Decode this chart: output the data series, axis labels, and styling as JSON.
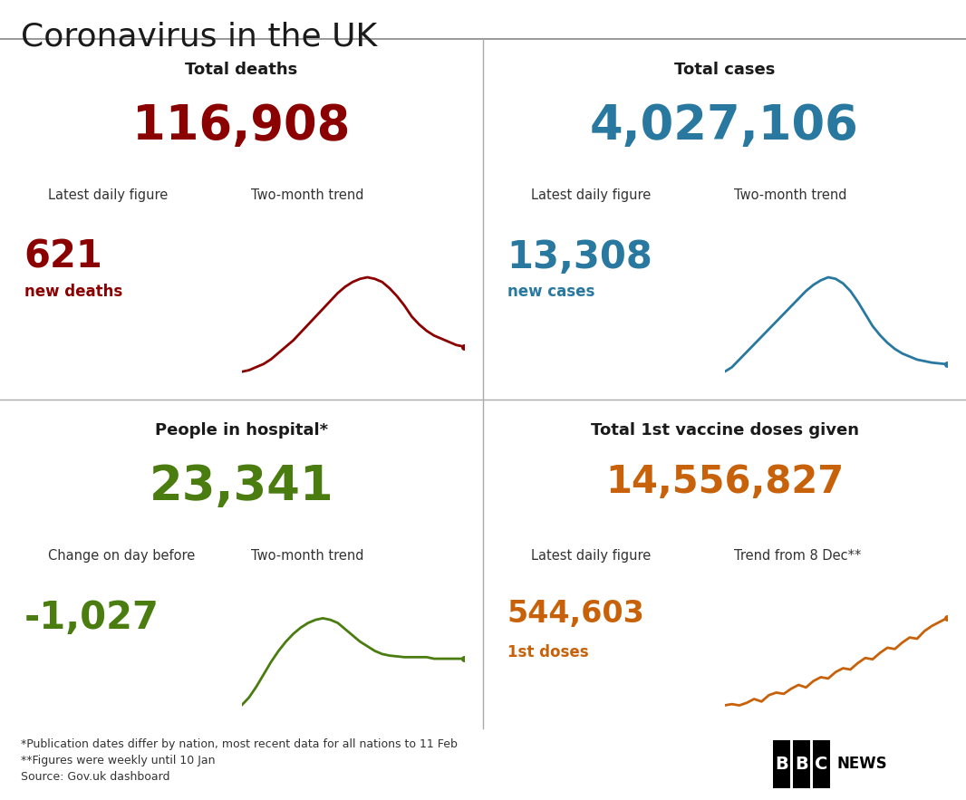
{
  "title": "Coronavirus in the UK",
  "title_color": "#1a1a1a",
  "background_color": "#ffffff",
  "panels": [
    {
      "label": "Total deaths",
      "total": "116,908",
      "total_color": "#8b0000",
      "sub_label1": "Latest daily figure",
      "sub_label2": "Two-month trend",
      "daily": "621",
      "daily_unit": "new deaths",
      "daily_color": "#8b0000",
      "trend_color": "#8b0000",
      "trend_x": [
        0,
        1,
        2,
        3,
        4,
        5,
        6,
        7,
        8,
        9,
        10,
        11,
        12,
        13,
        14,
        15,
        16,
        17,
        18,
        19,
        20,
        21,
        22,
        23,
        24,
        25,
        26,
        27,
        28,
        29,
        30
      ],
      "trend_y": [
        2.0,
        2.1,
        2.3,
        2.5,
        2.8,
        3.2,
        3.6,
        4.0,
        4.5,
        5.0,
        5.5,
        6.0,
        6.5,
        7.0,
        7.4,
        7.7,
        7.9,
        8.0,
        7.9,
        7.7,
        7.3,
        6.8,
        6.2,
        5.5,
        5.0,
        4.6,
        4.3,
        4.1,
        3.9,
        3.7,
        3.6
      ]
    },
    {
      "label": "Total cases",
      "total": "4,027,106",
      "total_color": "#2878a0",
      "sub_label1": "Latest daily figure",
      "sub_label2": "Two-month trend",
      "daily": "13,308",
      "daily_unit": "new cases",
      "daily_color": "#2878a0",
      "trend_color": "#2878a0",
      "trend_x": [
        0,
        1,
        2,
        3,
        4,
        5,
        6,
        7,
        8,
        9,
        10,
        11,
        12,
        13,
        14,
        15,
        16,
        17,
        18,
        19,
        20,
        21,
        22,
        23,
        24,
        25,
        26,
        27,
        28,
        29,
        30
      ],
      "trend_y": [
        2.0,
        2.3,
        2.8,
        3.3,
        3.8,
        4.3,
        4.8,
        5.3,
        5.8,
        6.3,
        6.8,
        7.3,
        7.7,
        8.0,
        8.2,
        8.1,
        7.8,
        7.3,
        6.6,
        5.8,
        5.0,
        4.4,
        3.9,
        3.5,
        3.2,
        3.0,
        2.8,
        2.7,
        2.6,
        2.55,
        2.5
      ]
    },
    {
      "label": "People in hospital*",
      "total": "23,341",
      "total_color": "#4a7c10",
      "sub_label1": "Change on day before",
      "sub_label2": "Two-month trend",
      "daily": "-1,027",
      "daily_unit": "",
      "daily_color": "#4a7c10",
      "trend_color": "#4a7c10",
      "trend_x": [
        0,
        1,
        2,
        3,
        4,
        5,
        6,
        7,
        8,
        9,
        10,
        11,
        12,
        13,
        14,
        15,
        16,
        17,
        18,
        19,
        20,
        21,
        22,
        23,
        24,
        25,
        26,
        27,
        28,
        29,
        30
      ],
      "trend_y": [
        2.0,
        2.5,
        3.2,
        4.0,
        4.8,
        5.5,
        6.1,
        6.6,
        7.0,
        7.3,
        7.5,
        7.6,
        7.5,
        7.3,
        6.9,
        6.5,
        6.1,
        5.8,
        5.5,
        5.3,
        5.2,
        5.15,
        5.1,
        5.1,
        5.1,
        5.1,
        5.0,
        5.0,
        5.0,
        5.0,
        5.0
      ]
    },
    {
      "label": "Total 1st vaccine doses given",
      "total": "14,556,827",
      "total_color": "#c8620a",
      "sub_label1": "Latest daily figure",
      "sub_label2": "Trend from 8 Dec**",
      "daily": "544,603",
      "daily_unit": "1st doses",
      "daily_color": "#c8620a",
      "trend_color": "#c8620a",
      "trend_x": [
        0,
        1,
        2,
        3,
        4,
        5,
        6,
        7,
        8,
        9,
        10,
        11,
        12,
        13,
        14,
        15,
        16,
        17,
        18,
        19,
        20,
        21,
        22,
        23,
        24,
        25,
        26,
        27,
        28,
        29,
        30
      ],
      "trend_y": [
        1.0,
        1.1,
        1.0,
        1.2,
        1.5,
        1.3,
        1.8,
        2.0,
        1.9,
        2.3,
        2.6,
        2.4,
        2.9,
        3.2,
        3.1,
        3.6,
        3.9,
        3.8,
        4.3,
        4.7,
        4.6,
        5.1,
        5.5,
        5.4,
        5.9,
        6.3,
        6.2,
        6.8,
        7.2,
        7.5,
        7.8
      ]
    }
  ],
  "footnotes": [
    "*Publication dates differ by nation, most recent data for all nations to 11 Feb",
    "**Figures were weekly until 10 Jan",
    "Source: Gov.uk dashboard"
  ]
}
